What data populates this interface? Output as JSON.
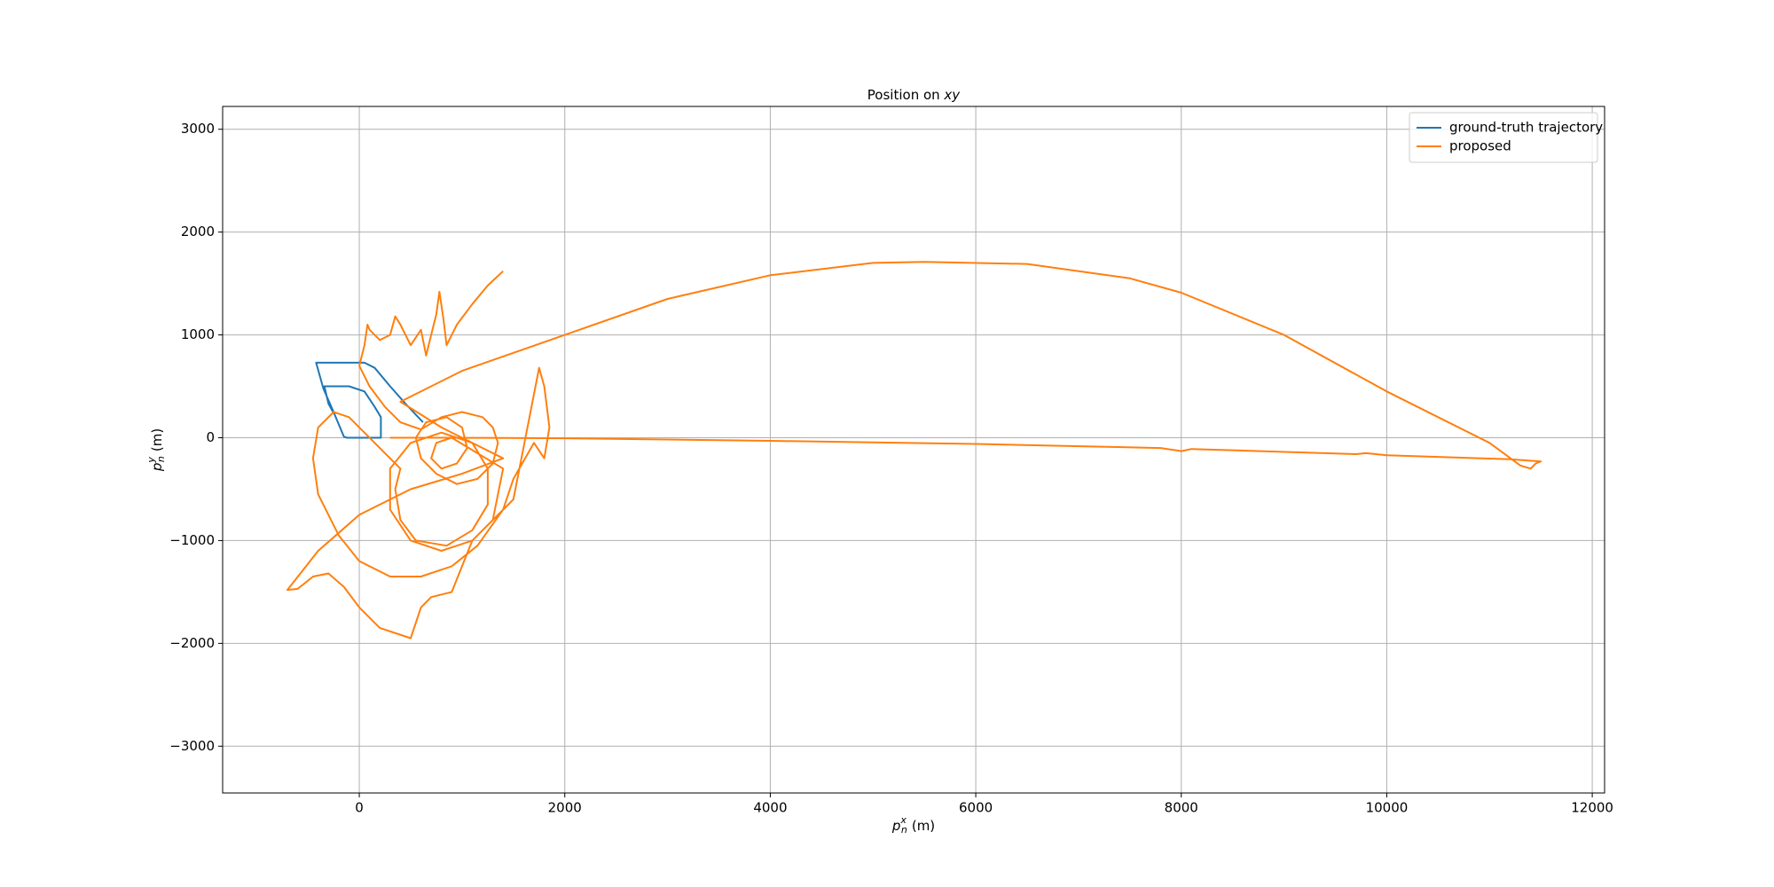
{
  "chart_data": {
    "type": "line",
    "title": [
      "Position on ",
      "xy"
    ],
    "xlabel": {
      "symbol": "p",
      "sub": "n",
      "sup": "x",
      "unit": "(m)"
    },
    "ylabel": {
      "symbol": "p",
      "sub": "n",
      "sup": "y",
      "unit": "(m)"
    },
    "xlim": [
      -1330,
      12120
    ],
    "ylim": [
      -3455,
      3222
    ],
    "xticks": [
      0,
      2000,
      4000,
      6000,
      8000,
      10000,
      12000
    ],
    "yticks": [
      {
        "value": -3000,
        "label": "−3000"
      },
      {
        "value": -2000,
        "label": "−2000"
      },
      {
        "value": -1000,
        "label": "−1000"
      },
      0,
      1000,
      2000,
      3000
    ],
    "grid": true,
    "legend": "upper right",
    "series": [
      {
        "name": "ground-truth trajectory",
        "color": "#1f77b4",
        "x": [
          620,
          450,
          300,
          150,
          50,
          -420,
          -350,
          -250,
          -150,
          -120,
          210,
          210,
          150,
          50,
          -100,
          -340,
          -300,
          -250
        ],
        "values": [
          150,
          330,
          500,
          680,
          730,
          730,
          480,
          250,
          10,
          0,
          0,
          200,
          300,
          450,
          500,
          500,
          330,
          240
        ]
      },
      {
        "name": "proposed",
        "color": "#ff7f0e",
        "x": [
          1400,
          1250,
          1100,
          950,
          850,
          820,
          780,
          750,
          700,
          650,
          600,
          500,
          400,
          350,
          300,
          200,
          100,
          80,
          50,
          0,
          100,
          250,
          400,
          600,
          800,
          1000,
          1200,
          1300,
          1350,
          1300,
          1150,
          950,
          750,
          600,
          550,
          650,
          850,
          1000,
          1050,
          950,
          800,
          700,
          750,
          900,
          1400,
          1300,
          1100,
          800,
          500,
          300,
          300,
          500,
          800,
          1100,
          1250,
          1250,
          1100,
          850,
          550,
          400,
          350,
          400,
          200,
          -100,
          -250,
          -400,
          -450,
          -400,
          -200,
          0,
          300,
          600,
          900,
          1150,
          1400,
          1500,
          1700,
          1800,
          1850,
          1800,
          1750,
          1500,
          1100,
          900,
          700,
          600,
          550,
          500,
          200,
          0,
          -150,
          -300,
          -450,
          -600,
          -700,
          -400,
          0,
          500,
          1000,
          1400,
          800,
          400,
          1000,
          2000,
          3000,
          4000,
          5000,
          5500,
          6500,
          7500,
          8000,
          9000,
          10000,
          10500,
          11000,
          11300,
          11400,
          11450,
          11500,
          11200,
          10000,
          9800,
          9700,
          8100,
          8000,
          7800,
          6000,
          4000,
          2000,
          1000,
          400,
          300
        ],
        "values": [
          1620,
          1480,
          1300,
          1100,
          900,
          1150,
          1420,
          1200,
          1000,
          800,
          1050,
          900,
          1100,
          1180,
          1000,
          950,
          1050,
          1100,
          900,
          700,
          500,
          300,
          150,
          80,
          200,
          250,
          200,
          100,
          -50,
          -250,
          -400,
          -450,
          -350,
          -200,
          0,
          150,
          200,
          100,
          -100,
          -250,
          -300,
          -200,
          -50,
          0,
          -300,
          -800,
          -1000,
          -1100,
          -1000,
          -700,
          -300,
          -50,
          50,
          -50,
          -300,
          -650,
          -900,
          -1050,
          -1000,
          -800,
          -500,
          -300,
          -100,
          200,
          250,
          100,
          -200,
          -550,
          -950,
          -1200,
          -1350,
          -1350,
          -1250,
          -1050,
          -700,
          -400,
          -50,
          -200,
          100,
          500,
          680,
          -600,
          -1000,
          -1500,
          -1550,
          -1650,
          -1800,
          -1950,
          -1850,
          -1650,
          -1450,
          -1320,
          -1350,
          -1470,
          -1480,
          -1100,
          -750,
          -500,
          -350,
          -200,
          100,
          350,
          650,
          1000,
          1350,
          1580,
          1700,
          1710,
          1690,
          1550,
          1410,
          1000,
          450,
          200,
          -50,
          -270,
          -300,
          -250,
          -230,
          -210,
          -170,
          -150,
          -160,
          -110,
          -130,
          -100,
          -60,
          -30,
          -5,
          0,
          0,
          0
        ]
      }
    ]
  }
}
